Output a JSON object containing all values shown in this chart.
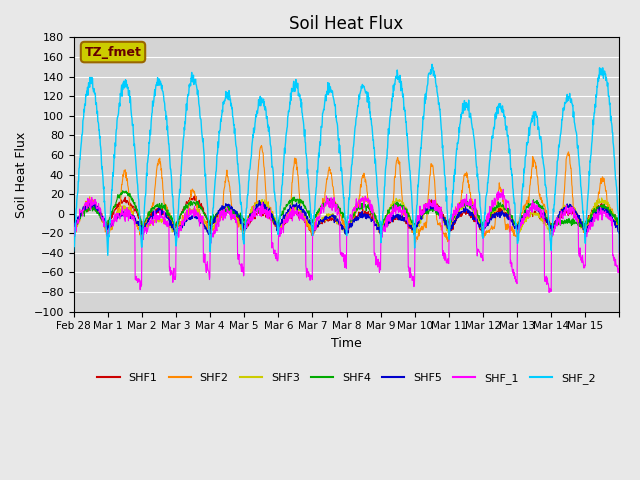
{
  "title": "Soil Heat Flux",
  "xlabel": "Time",
  "ylabel": "Soil Heat Flux",
  "ylim": [
    -100,
    180
  ],
  "yticks": [
    -100,
    -80,
    -60,
    -40,
    -20,
    0,
    20,
    40,
    60,
    80,
    100,
    120,
    140,
    160,
    180
  ],
  "xtick_positions": [
    0,
    1,
    2,
    3,
    4,
    5,
    6,
    7,
    8,
    9,
    10,
    11,
    12,
    13,
    14,
    15,
    16
  ],
  "xtick_labels": [
    "Feb 28",
    "Mar 1",
    "Mar 2",
    "Mar 3",
    "Mar 4",
    "Mar 5",
    "Mar 6",
    "Mar 7",
    "Mar 8",
    "Mar 9",
    "Mar 10",
    "Mar 11",
    "Mar 12",
    "Mar 13",
    "Mar 14",
    "Mar 15",
    ""
  ],
  "series_colors": {
    "SHF1": "#cc0000",
    "SHF2": "#ff8800",
    "SHF3": "#cccc00",
    "SHF4": "#00aa00",
    "SHF5": "#0000cc",
    "SHF_1": "#ff00ff",
    "SHF_2": "#00ccff"
  },
  "background_color": "#e8e8e8",
  "plot_bg_color": "#d4d4d4",
  "annotation_text": "TZ_fmet",
  "annotation_bg": "#cccc00",
  "annotation_border": "#996600",
  "annotation_text_color": "#660000",
  "n_days": 16,
  "hours_per_day": 24,
  "dt_hours": 0.25
}
